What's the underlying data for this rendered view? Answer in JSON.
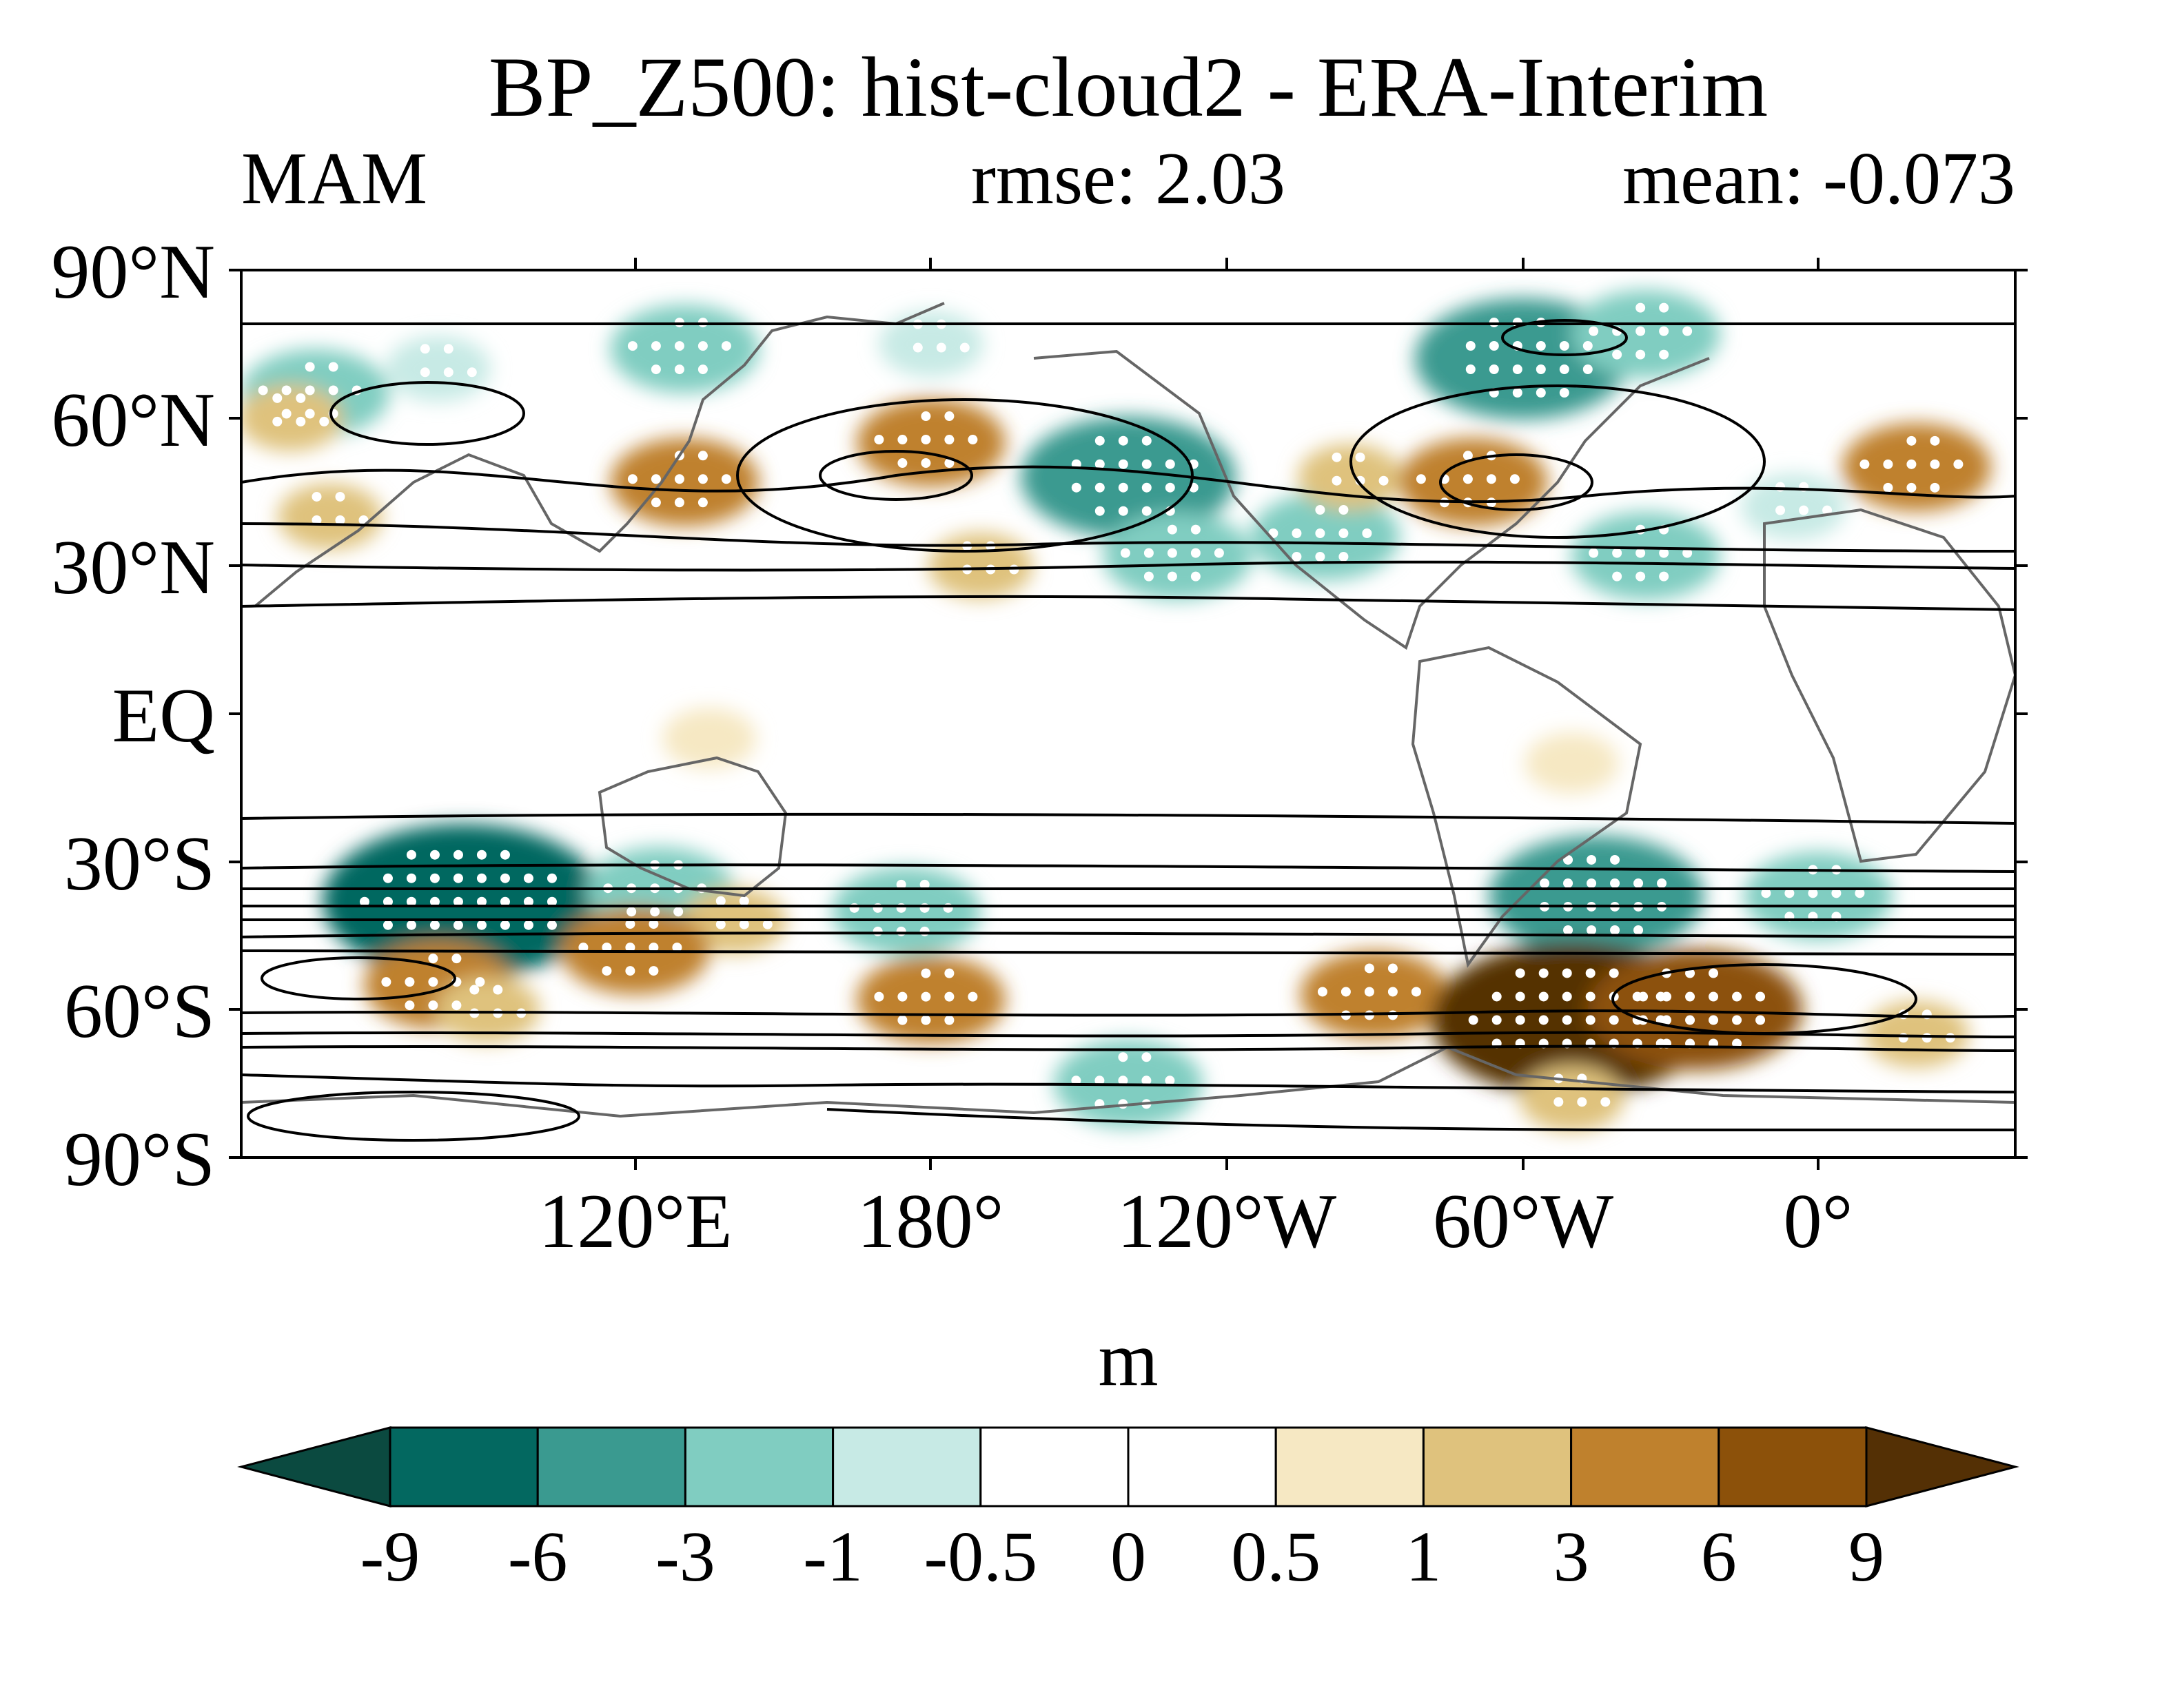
{
  "title": "BP_Z500: hist-cloud2 - ERA-Interim",
  "season": "MAM",
  "rmse_label": "rmse: 2.03",
  "mean_label": "mean: -0.073",
  "units": "m",
  "lat_labels": [
    "90°N",
    "60°N",
    "30°N",
    "EQ",
    "30°S",
    "60°S",
    "90°S"
  ],
  "lon_labels": [
    "120°E",
    "180°",
    "120°W",
    "60°W",
    "0°"
  ],
  "colorbar": {
    "levels": [
      "-9",
      "-6",
      "-3",
      "-1",
      "-0.5",
      "0",
      "0.5",
      "1",
      "3",
      "6",
      "9"
    ],
    "colors": [
      "#0b4a40",
      "#036860",
      "#3a9a90",
      "#80cdc1",
      "#c7eae5",
      "#ffffff",
      "#ffffff",
      "#f6e8c3",
      "#dfc27d",
      "#bf812d",
      "#8c510a",
      "#543005"
    ]
  },
  "chart_data": {
    "type": "heatmap",
    "title": "BP_Z500: hist-cloud2 - ERA-Interim",
    "subtitle_left": "MAM",
    "subtitle_center": "rmse: 2.03",
    "subtitle_right": "mean: -0.073",
    "variable_units": "m",
    "lon_range": [
      60,
      420
    ],
    "lat_range": [
      -90,
      90
    ],
    "features": [
      {
        "lon": 75,
        "lat": 65,
        "value": -3
      },
      {
        "lon": 100,
        "lat": 70,
        "value": -1
      },
      {
        "lon": 150,
        "lat": 74,
        "value": -3
      },
      {
        "lon": 200,
        "lat": 75,
        "value": -1
      },
      {
        "lon": 320,
        "lat": 72,
        "value": -6
      },
      {
        "lon": 345,
        "lat": 77,
        "value": -3
      },
      {
        "lon": 150,
        "lat": 47,
        "value": 3
      },
      {
        "lon": 200,
        "lat": 55,
        "value": 3
      },
      {
        "lon": 240,
        "lat": 48,
        "value": -6
      },
      {
        "lon": 250,
        "lat": 32,
        "value": -3
      },
      {
        "lon": 280,
        "lat": 36,
        "value": -3
      },
      {
        "lon": 285,
        "lat": 48,
        "value": 1
      },
      {
        "lon": 310,
        "lat": 47,
        "value": 3
      },
      {
        "lon": 345,
        "lat": 32,
        "value": -3
      },
      {
        "lon": 375,
        "lat": 42,
        "value": -1
      },
      {
        "lon": 400,
        "lat": 50,
        "value": 3
      },
      {
        "lon": 70,
        "lat": 60,
        "value": 1
      },
      {
        "lon": 78,
        "lat": 40,
        "value": 1
      },
      {
        "lon": 210,
        "lat": 30,
        "value": 1
      },
      {
        "lon": 155,
        "lat": -5,
        "value": 0.5
      },
      {
        "lon": 330,
        "lat": -10,
        "value": 0.5
      },
      {
        "lon": 105,
        "lat": -38,
        "value": -9
      },
      {
        "lon": 145,
        "lat": -36,
        "value": -3
      },
      {
        "lon": 160,
        "lat": -42,
        "value": 1
      },
      {
        "lon": 140,
        "lat": -48,
        "value": 3
      },
      {
        "lon": 195,
        "lat": -40,
        "value": -3
      },
      {
        "lon": 335,
        "lat": -37,
        "value": -6
      },
      {
        "lon": 380,
        "lat": -37,
        "value": -3
      },
      {
        "lon": 100,
        "lat": -55,
        "value": 3
      },
      {
        "lon": 110,
        "lat": -60,
        "value": 1
      },
      {
        "lon": 200,
        "lat": -58,
        "value": 3
      },
      {
        "lon": 290,
        "lat": -57,
        "value": 3
      },
      {
        "lon": 330,
        "lat": -62,
        "value": 9
      },
      {
        "lon": 355,
        "lat": -60,
        "value": 6
      },
      {
        "lon": 400,
        "lat": -65,
        "value": 1
      },
      {
        "lon": 240,
        "lat": -75,
        "value": -3
      },
      {
        "lon": 330,
        "lat": -78,
        "value": 1
      }
    ]
  }
}
